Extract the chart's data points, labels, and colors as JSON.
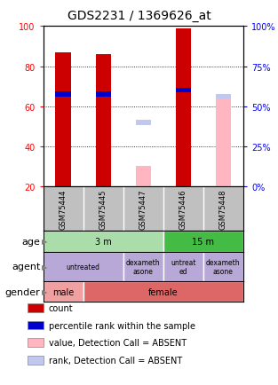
{
  "title": "GDS2231 / 1369626_at",
  "samples": [
    "GSM75444",
    "GSM75445",
    "GSM75447",
    "GSM75446",
    "GSM75448"
  ],
  "red_bars": [
    87,
    86,
    0,
    99,
    0
  ],
  "blue_markers": [
    66,
    66,
    0,
    68,
    0
  ],
  "pink_bars": [
    0,
    0,
    30,
    0,
    65
  ],
  "lavender_markers": [
    0,
    0,
    52,
    0,
    65
  ],
  "ymin": 20,
  "ymax": 100,
  "left_yticks": [
    20,
    40,
    60,
    80,
    100
  ],
  "right_yticks": [
    0,
    25,
    50,
    75,
    100
  ],
  "right_ytick_positions": [
    20,
    40,
    60,
    80,
    100
  ],
  "bar_color_red": "#cc0000",
  "bar_color_blue": "#0000cc",
  "bar_color_pink": "#ffb6c1",
  "bar_color_lavender": "#c0c8f0",
  "sample_bg_color": "#c0c0c0",
  "age_color_light": "#aaddaa",
  "age_color_dark": "#44bb44",
  "agent_color": "#b8a8d8",
  "gender_male_color": "#f0a0a0",
  "gender_female_color": "#dd6666",
  "plot_bg_color": "#ffffff",
  "title_fontsize": 10,
  "tick_fontsize": 7,
  "row_label_fontsize": 8,
  "sample_fontsize": 6,
  "cell_fontsize": 7,
  "legend_fontsize": 7,
  "legend_items": [
    {
      "color": "#cc0000",
      "label": "count"
    },
    {
      "color": "#0000cc",
      "label": "percentile rank within the sample"
    },
    {
      "color": "#ffb6c1",
      "label": "value, Detection Call = ABSENT"
    },
    {
      "color": "#c0c8f0",
      "label": "rank, Detection Call = ABSENT"
    }
  ]
}
